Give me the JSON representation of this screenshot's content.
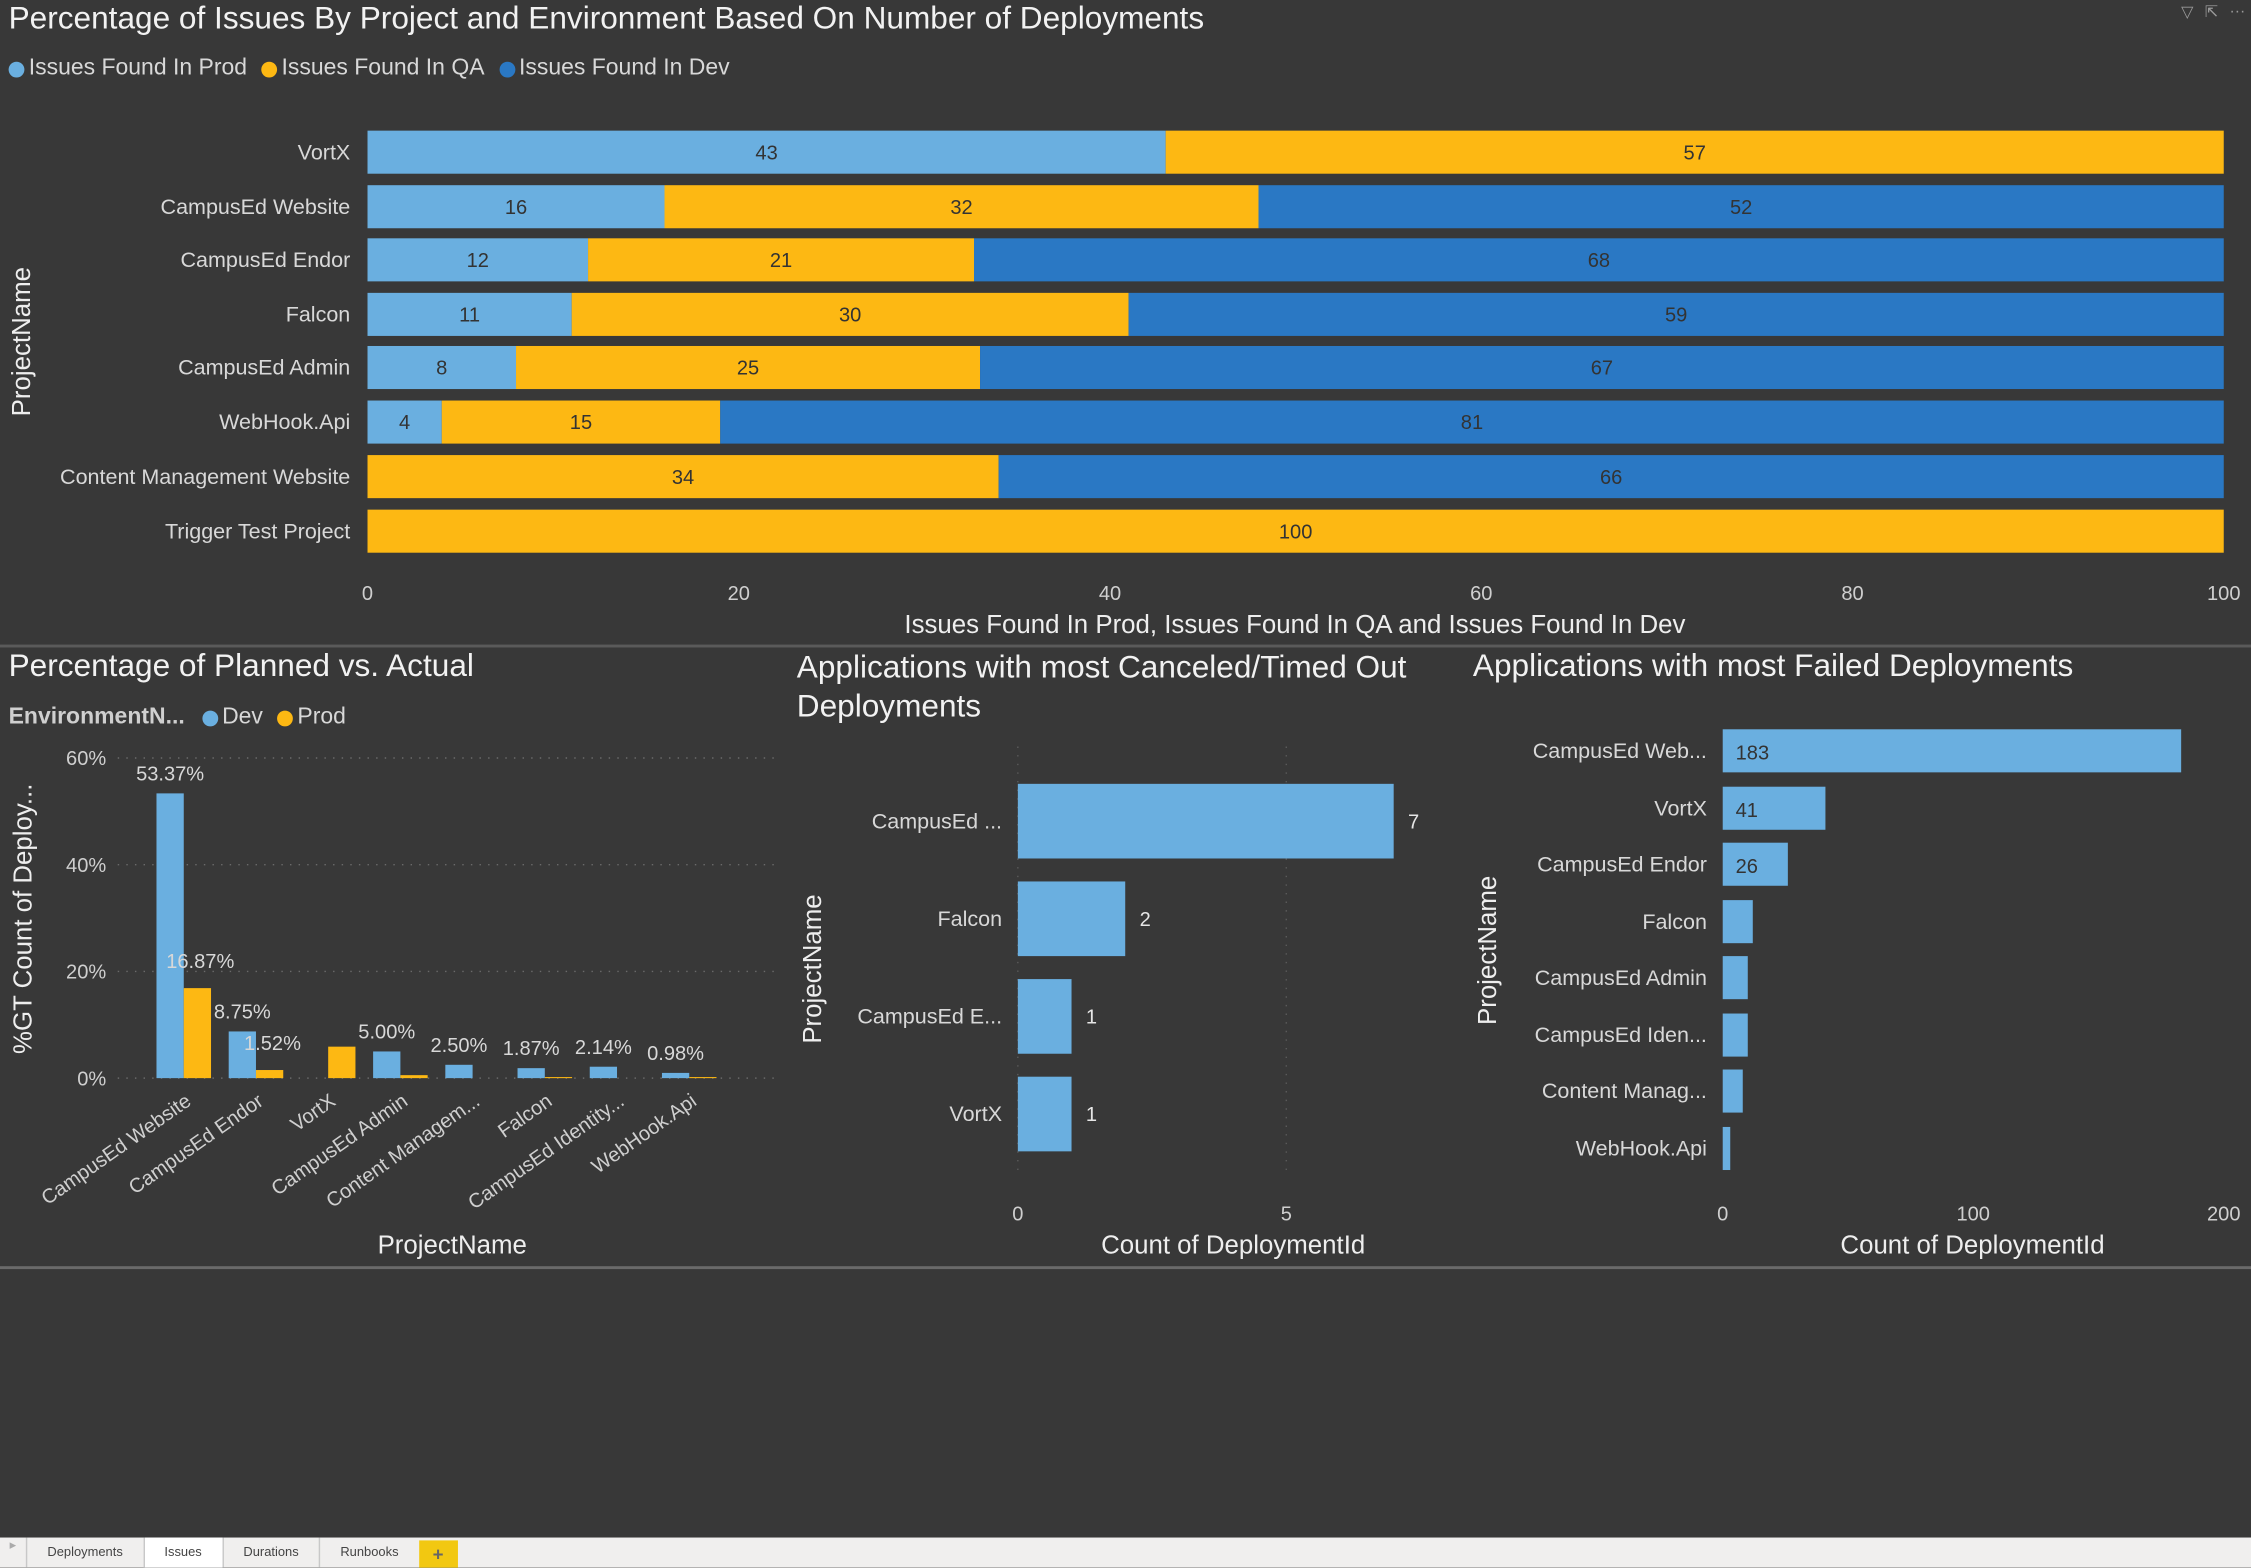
{
  "colors": {
    "prod": "#6aafe0",
    "qa": "#fdb813",
    "dev": "#2a78c4",
    "background": "#383838"
  },
  "visual_header_icons": [
    "filter-icon",
    "focus-mode-icon",
    "more-options-icon"
  ],
  "tabs": [
    "Deployments",
    "Issues",
    "Durations",
    "Runbooks"
  ],
  "active_tab": "Issues",
  "add_tab_label": "+",
  "chart_data": [
    {
      "type": "bar",
      "orientation": "horizontal",
      "stacked": "100%",
      "title": "Percentage of Issues By Project and Environment Based On Number of Deployments",
      "xlabel": "Issues Found In Prod, Issues Found In QA and Issues Found In Dev",
      "ylabel": "ProjectName",
      "xlim": [
        0,
        100
      ],
      "xticks": [
        "0",
        "20",
        "40",
        "60",
        "80",
        "100"
      ],
      "legend": "top-left",
      "categories": [
        "VortX",
        "CampusEd Website",
        "CampusEd Endor",
        "Falcon",
        "CampusEd Admin",
        "WebHook.Api",
        "Content Management Website",
        "Trigger Test Project"
      ],
      "series": [
        {
          "name": "Issues Found In Prod",
          "color": "#6aafe0",
          "values": [
            43,
            16,
            12,
            11,
            8,
            4,
            0,
            0
          ]
        },
        {
          "name": "Issues Found In QA",
          "color": "#fdb813",
          "values": [
            57,
            32,
            21,
            30,
            25,
            15,
            34,
            100
          ]
        },
        {
          "name": "Issues Found In Dev",
          "color": "#2a78c4",
          "values": [
            0,
            52,
            68,
            59,
            67,
            81,
            66,
            0
          ]
        }
      ]
    },
    {
      "type": "bar",
      "orientation": "vertical",
      "grouped": true,
      "title": "Percentage of Planned vs. Actual",
      "xlabel": "ProjectName",
      "ylabel": "%GT Count of Deploy...",
      "ylim": [
        0,
        60
      ],
      "yticks": [
        "0%",
        "20%",
        "40%",
        "60%"
      ],
      "grid": true,
      "legend": "top-left",
      "legend_title": "EnvironmentN...",
      "categories": [
        "CampusEd Website",
        "CampusEd Endor",
        "VortX",
        "CampusEd Admin",
        "Content Managem...",
        "Falcon",
        "CampusEd Identity...",
        "WebHook.Api"
      ],
      "series": [
        {
          "name": "Dev",
          "color": "#6aafe0",
          "values": [
            53.37,
            8.75,
            0,
            5.0,
            2.5,
            1.87,
            2.14,
            0.98
          ],
          "labels": [
            "53.37%",
            "8.75%",
            "",
            "5.00%",
            "2.50%",
            "1.87%",
            "2.14%",
            "0.98%"
          ]
        },
        {
          "name": "Prod",
          "color": "#fdb813",
          "values": [
            16.87,
            1.52,
            5.9,
            0.56,
            0,
            0.2,
            0,
            0.2
          ],
          "labels": [
            "16.87%",
            "1.52%",
            "",
            "",
            "",
            "",
            "",
            ""
          ]
        }
      ]
    },
    {
      "type": "bar",
      "orientation": "horizontal",
      "title": "Applications with most Canceled/Timed Out Deployments",
      "xlabel": "Count of DeploymentId",
      "ylabel": "ProjectName",
      "xlim": [
        0,
        7.5
      ],
      "xticks": [
        "0",
        "5"
      ],
      "grid": true,
      "categories": [
        "CampusEd ...",
        "Falcon",
        "CampusEd E...",
        "VortX"
      ],
      "values": [
        7,
        2,
        1,
        1
      ]
    },
    {
      "type": "bar",
      "orientation": "horizontal",
      "title": "Applications with most Failed Deployments",
      "xlabel": "Count of DeploymentId",
      "ylabel": "ProjectName",
      "xlim": [
        0,
        200
      ],
      "xticks": [
        "0",
        "100",
        "200"
      ],
      "categories": [
        "CampusEd Web...",
        "VortX",
        "CampusEd Endor",
        "Falcon",
        "CampusEd Admin",
        "CampusEd Iden...",
        "Content Manag...",
        "WebHook.Api"
      ],
      "values": [
        183,
        41,
        26,
        12,
        10,
        10,
        8,
        3
      ],
      "labels": [
        "183",
        "41",
        "26",
        "",
        "",
        "",
        "",
        ""
      ]
    }
  ]
}
